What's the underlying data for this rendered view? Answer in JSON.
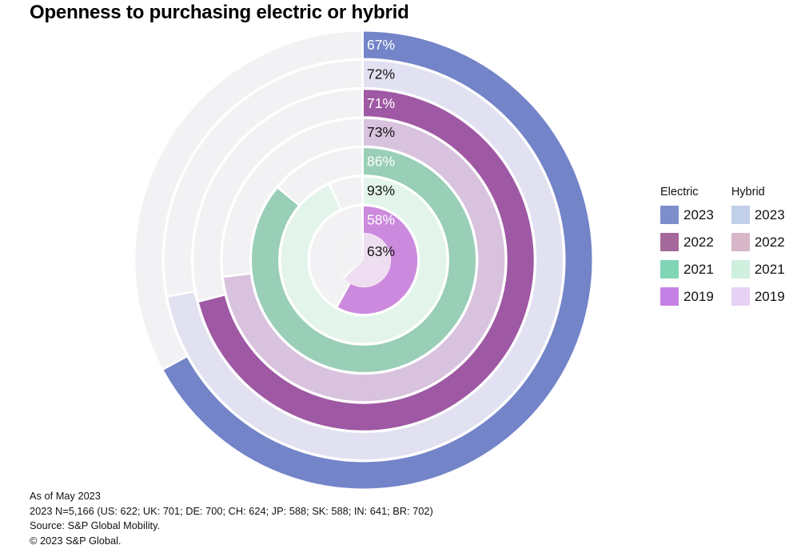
{
  "title": "Openness to purchasing electric or hybrid",
  "chart_data": {
    "type": "radial_progress",
    "unit": "%",
    "start": "12 o'clock",
    "direction": "clockwise",
    "track_color": "#f2f2f4",
    "ring_order": "outermost to innermost",
    "rings": [
      {
        "series": "Electric",
        "year": "2023",
        "value": 67,
        "color": "#7384c8",
        "label_color": "#ffffff"
      },
      {
        "series": "Hybrid",
        "year": "2023",
        "value": 72,
        "color": "#e1e1f2",
        "label_color": "#141414"
      },
      {
        "series": "Electric",
        "year": "2022",
        "value": 71,
        "color": "#9f58a3",
        "label_color": "#ffffff"
      },
      {
        "series": "Hybrid",
        "year": "2022",
        "value": 73,
        "color": "#d9c2de",
        "label_color": "#141414"
      },
      {
        "series": "Electric",
        "year": "2021",
        "value": 86,
        "color": "#99ceb7",
        "label_color": "#ffffff"
      },
      {
        "series": "Hybrid",
        "year": "2021",
        "value": 93,
        "color": "#e3f4eb",
        "label_color": "#141414"
      },
      {
        "series": "Electric",
        "year": "2019",
        "value": 58,
        "color": "#cb8add",
        "label_color": "#ffffff"
      },
      {
        "series": "Hybrid",
        "year": "2019",
        "value": 63,
        "color": "#efdef2",
        "label_color": "#141414",
        "shape": "pie"
      }
    ]
  },
  "legend": {
    "columns": [
      {
        "header": "Electric",
        "items": [
          {
            "year": "2023",
            "color": "#7d8ecb"
          },
          {
            "year": "2022",
            "color": "#a5689a"
          },
          {
            "year": "2021",
            "color": "#80d5b5"
          },
          {
            "year": "2019",
            "color": "#c480e4"
          }
        ]
      },
      {
        "header": "Hybrid",
        "items": [
          {
            "year": "2023",
            "color": "#c2cfe9"
          },
          {
            "year": "2022",
            "color": "#d7b6c8"
          },
          {
            "year": "2021",
            "color": "#cfefdf"
          },
          {
            "year": "2019",
            "color": "#e6d2f3"
          }
        ]
      }
    ]
  },
  "footer": {
    "lines": [
      "As of May 2023",
      "2023 N=5,166 (US: 622; UK: 701; DE: 700; CH: 624; JP: 588; SK: 588; IN: 641; BR: 702)",
      "Source: S&P Global Mobility.",
      "© 2023 S&P Global."
    ]
  }
}
